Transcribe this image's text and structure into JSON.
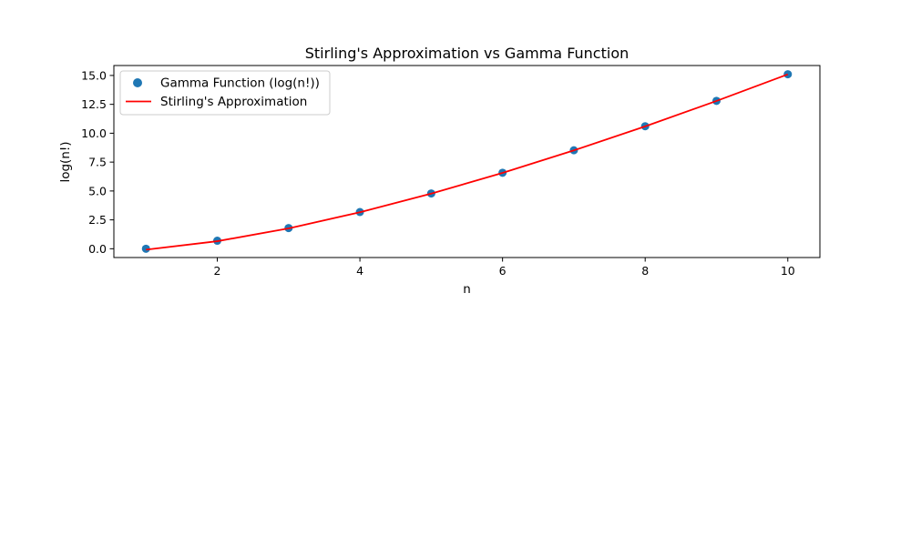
{
  "chart_data": {
    "type": "scatter",
    "title": "Stirling's Approximation vs Gamma Function",
    "xlabel": "n",
    "ylabel": "log(n!)",
    "xlim": [
      0.55,
      10.45
    ],
    "ylim": [
      -0.76,
      15.86
    ],
    "xticks": [
      2,
      4,
      6,
      8,
      10
    ],
    "xtick_labels": [
      "2",
      "4",
      "6",
      "8",
      "10"
    ],
    "yticks": [
      0,
      2.5,
      5,
      7.5,
      10,
      12.5,
      15
    ],
    "ytick_labels": [
      "0.0",
      "2.5",
      "5.0",
      "7.5",
      "10.0",
      "12.5",
      "15.0"
    ],
    "grid": false,
    "legend_position": "upper-left",
    "series": [
      {
        "name": "Gamma Function (log(n!))",
        "kind": "scatter",
        "color": "#1f77b4",
        "x": [
          1,
          2,
          3,
          4,
          5,
          6,
          7,
          8,
          9,
          10
        ],
        "y": [
          0.0,
          0.693,
          1.792,
          3.178,
          4.787,
          6.579,
          8.525,
          10.605,
          12.802,
          15.104
        ]
      },
      {
        "name": "Stirling's Approximation",
        "kind": "line",
        "color": "#ff0000",
        "x": [
          1,
          2,
          3,
          4,
          5,
          6,
          7,
          8,
          9,
          10
        ],
        "y": [
          -0.081,
          0.652,
          1.764,
          3.157,
          4.771,
          6.565,
          8.513,
          10.595,
          12.793,
          15.096
        ]
      }
    ]
  }
}
